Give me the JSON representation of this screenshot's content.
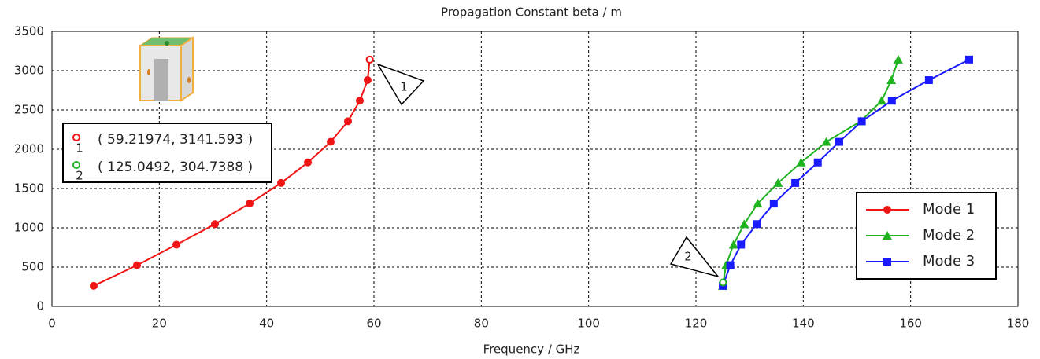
{
  "chart_data": {
    "type": "line",
    "title": "Propagation Constant beta / m",
    "x_label": "Frequency / GHz",
    "xlim": [
      0,
      180
    ],
    "xticks": [
      0,
      20,
      40,
      60,
      80,
      100,
      120,
      140,
      160,
      180
    ],
    "ylim": [
      0,
      3500
    ],
    "yticks": [
      0,
      500,
      1000,
      1500,
      2000,
      2500,
      3000,
      3500
    ],
    "grid": true,
    "legend": "lower right",
    "series": [
      {
        "name": "Mode 1",
        "color": "#f01414",
        "marker": "circle",
        "x": [
          7.77,
          15.84,
          23.18,
          30.37,
          36.82,
          42.69,
          47.68,
          51.93,
          55.16,
          57.36,
          58.82,
          59.22
        ],
        "values": [
          261.8,
          523.6,
          785.4,
          1047.2,
          1309,
          1570.8,
          1832.6,
          2094.4,
          2356.2,
          2618,
          2879.8,
          3141.6
        ]
      },
      {
        "name": "Mode 2",
        "color": "#1fb31f",
        "marker": "triangle",
        "x": [
          125.0,
          125.6,
          127.0,
          129.0,
          131.5,
          135.3,
          139.6,
          144.3,
          150.7,
          154.6,
          156.4,
          157.7
        ],
        "values": [
          261.8,
          523.6,
          785.4,
          1047.2,
          1309,
          1570.8,
          1832.6,
          2094.4,
          2356.2,
          2618,
          2879.8,
          3141.6
        ]
      },
      {
        "name": "Mode 3",
        "color": "#1a1aff",
        "marker": "square",
        "x": [
          125.0,
          126.4,
          128.4,
          131.3,
          134.5,
          138.5,
          142.7,
          146.7,
          150.9,
          156.5,
          163.4,
          170.9
        ],
        "values": [
          261.8,
          523.6,
          785.4,
          1047.2,
          1309,
          1570.8,
          1832.6,
          2094.4,
          2356.2,
          2618,
          2879.8,
          3141.6
        ]
      }
    ],
    "markers": [
      {
        "label": "1",
        "x": 59.21974,
        "y": 3141.593,
        "color": "#f01414",
        "text": "( 59.21974, 3141.593 )"
      },
      {
        "label": "2",
        "x": 125.0492,
        "y": 304.7388,
        "color": "#1fb31f",
        "text": "( 125.0492, 304.7388 )"
      }
    ]
  }
}
